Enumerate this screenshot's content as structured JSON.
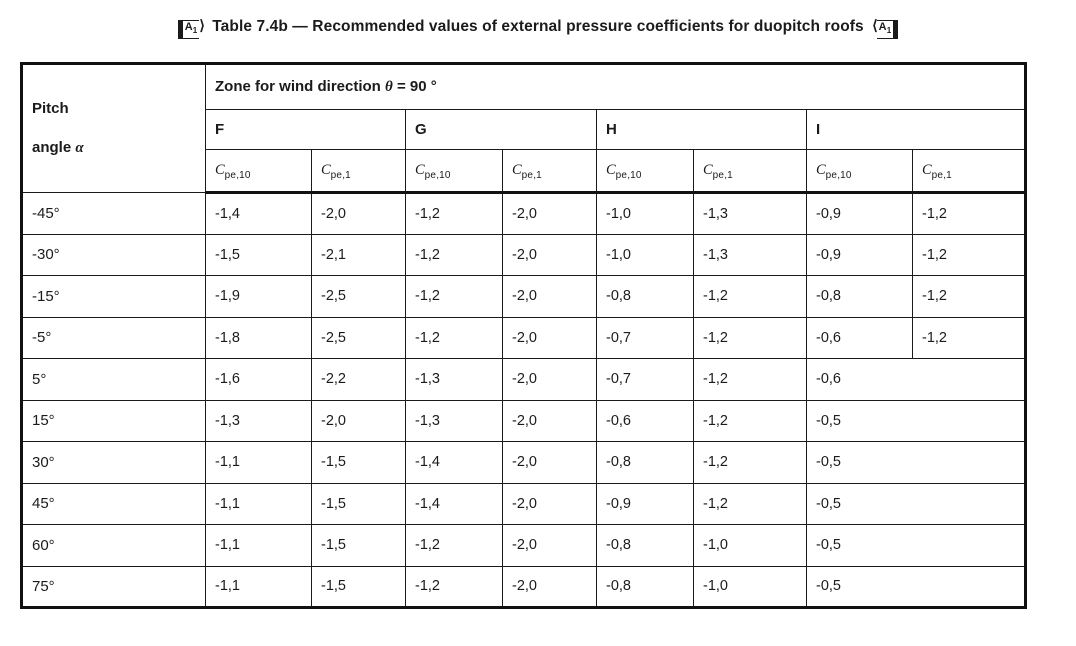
{
  "caption": {
    "marker_letter": "A",
    "marker_sub": "1",
    "text": "Table 7.4b — Recommended values of external pressure coefficients for duopitch roofs"
  },
  "table": {
    "corner_header": {
      "line1": "Pitch",
      "line2_prefix": "angle ",
      "line2_symbol": "α"
    },
    "zone_header": {
      "prefix": "Zone for wind direction ",
      "symbol": "θ",
      "suffix": " = 90 °"
    },
    "zones": [
      "F",
      "G",
      "H",
      "I"
    ],
    "coef": {
      "symbol": "C",
      "sub10": "pe,10",
      "sub1": "pe,1"
    },
    "rows": [
      {
        "angle": "-45°",
        "values": [
          "-1,4",
          "-2,0",
          "-1,2",
          "-2,0",
          "-1,0",
          "-1,3",
          "-0,9",
          "-1,2"
        ],
        "i_merged": false
      },
      {
        "angle": "-30°",
        "values": [
          "-1,5",
          "-2,1",
          "-1,2",
          "-2,0",
          "-1,0",
          "-1,3",
          "-0,9",
          "-1,2"
        ],
        "i_merged": false
      },
      {
        "angle": "-15°",
        "values": [
          "-1,9",
          "-2,5",
          "-1,2",
          "-2,0",
          "-0,8",
          "-1,2",
          "-0,8",
          "-1,2"
        ],
        "i_merged": false
      },
      {
        "angle": "-5°",
        "values": [
          "-1,8",
          "-2,5",
          "-1,2",
          "-2,0",
          "-0,7",
          "-1,2",
          "-0,6",
          "-1,2"
        ],
        "i_merged": false
      },
      {
        "angle": "5°",
        "values": [
          "-1,6",
          "-2,2",
          "-1,3",
          "-2,0",
          "-0,7",
          "-1,2",
          "-0,6"
        ],
        "i_merged": true
      },
      {
        "angle": "15°",
        "values": [
          "-1,3",
          "-2,0",
          "-1,3",
          "-2,0",
          "-0,6",
          "-1,2",
          "-0,5"
        ],
        "i_merged": true
      },
      {
        "angle": "30°",
        "values": [
          "-1,1",
          "-1,5",
          "-1,4",
          "-2,0",
          "-0,8",
          "-1,2",
          "-0,5"
        ],
        "i_merged": true
      },
      {
        "angle": "45°",
        "values": [
          "-1,1",
          "-1,5",
          "-1,4",
          "-2,0",
          "-0,9",
          "-1,2",
          "-0,5"
        ],
        "i_merged": true
      },
      {
        "angle": "60°",
        "values": [
          "-1,1",
          "-1,5",
          "-1,2",
          "-2,0",
          "-0,8",
          "-1,0",
          "-0,5"
        ],
        "i_merged": true
      },
      {
        "angle": "75°",
        "values": [
          "-1,1",
          "-1,5",
          "-1,2",
          "-2,0",
          "-0,8",
          "-1,0",
          "-0,5"
        ],
        "i_merged": true
      }
    ]
  },
  "colors": {
    "text": "#1b1b1b",
    "border": "#111111",
    "background": "#ffffff"
  }
}
